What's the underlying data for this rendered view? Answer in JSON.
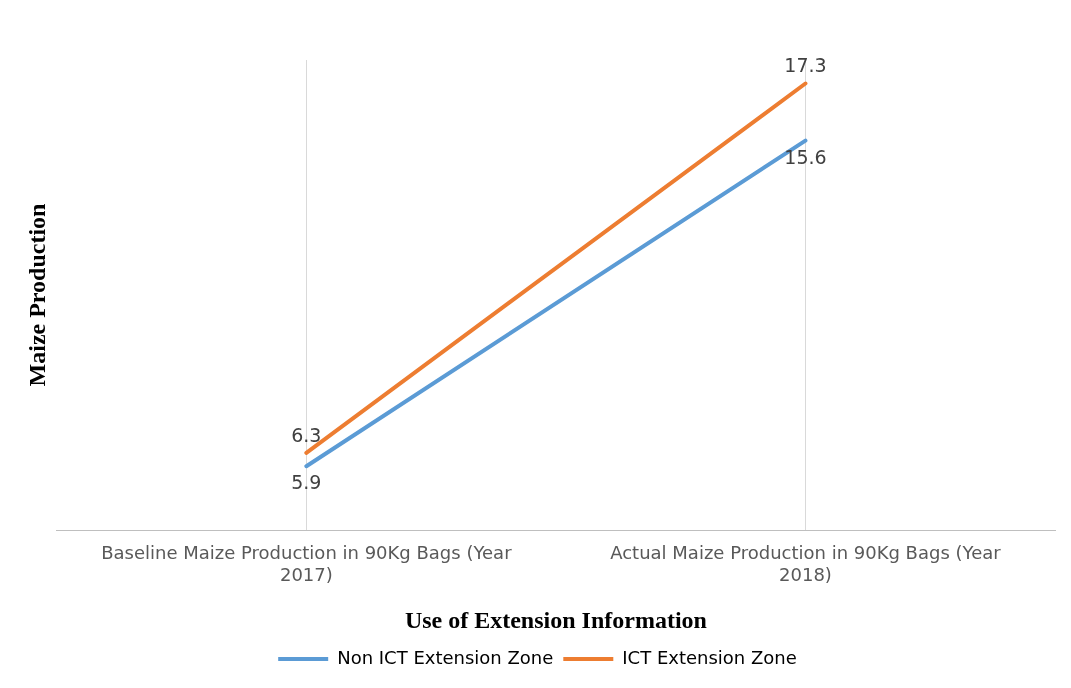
{
  "chart_data": {
    "type": "line",
    "xlabel": "Use of Extension Information",
    "ylabel": "Maize Production",
    "categories": [
      "Baseline Maize Production in 90Kg Bags (Year 2017)",
      "Actual Maize Production in 90Kg Bags (Year 2018)"
    ],
    "series": [
      {
        "name": "Non ICT Extension Zone",
        "color": "#5b9bd5",
        "values": [
          5.9,
          15.6
        ]
      },
      {
        "name": "ICT Extension Zone",
        "color": "#ed7d31",
        "values": [
          6.3,
          17.3
        ]
      }
    ],
    "data_labels": true,
    "grid": "x",
    "legend": "bottom",
    "marker": "none",
    "line_style": "solid"
  }
}
